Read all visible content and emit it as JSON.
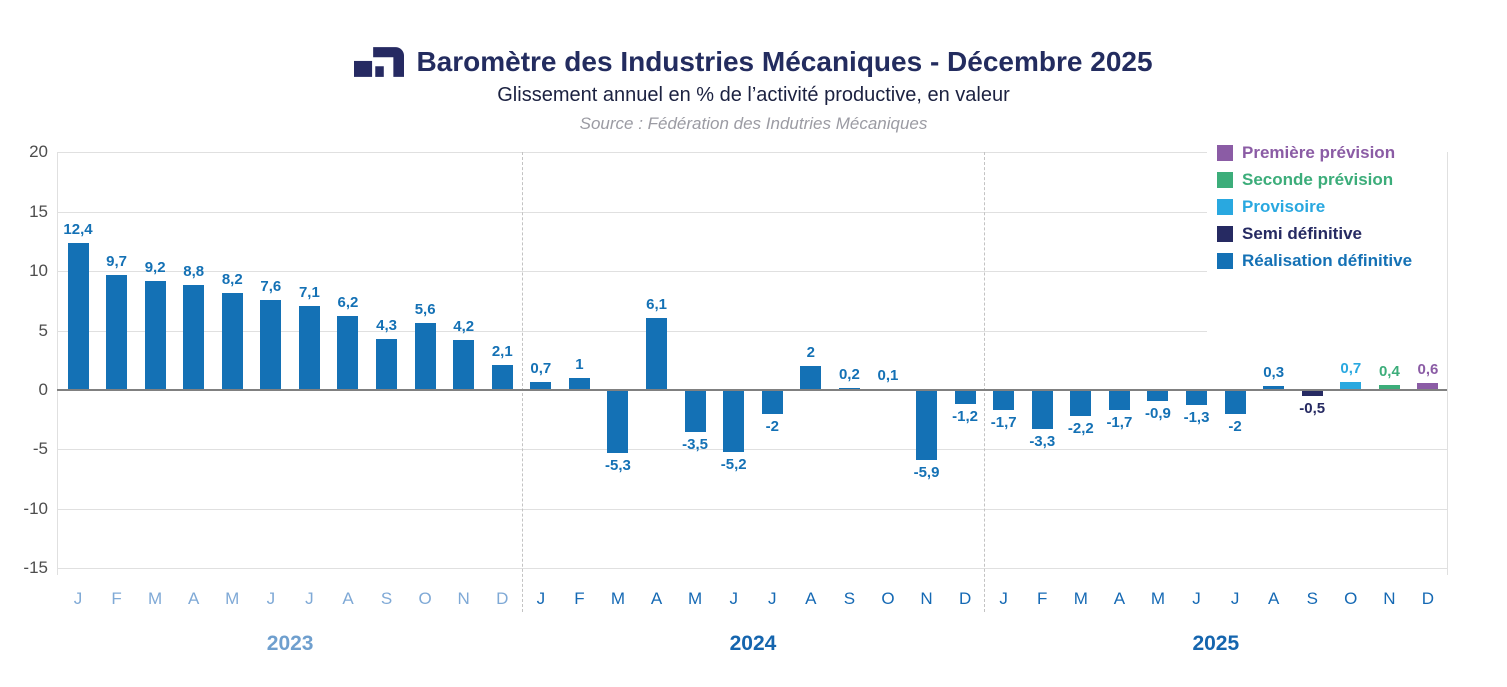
{
  "header": {
    "title": "Baromètre des Industries Mécaniques - Décembre 2025",
    "subtitle": "Glissement annuel en % de l’activité productive, en valeur",
    "source": "Source : Fédération des Indutries Mécaniques"
  },
  "colors": {
    "premiere": "#8b5ca5",
    "seconde": "#3cad7a",
    "provisoire": "#29a8e0",
    "semi": "#262a62",
    "realisation": "#1471b5",
    "title": "#232c5f",
    "subtitle": "#1b2140",
    "source": "#9b9ba3",
    "grid": "#e0e0e0",
    "zero_line": "#808080",
    "axis_label": "#4d4d4d",
    "separator": "#c3c3c3",
    "month_2023": "#7fa9d6",
    "year_2023": "#6f9fce",
    "month_dark": "#1569b4",
    "year_dark": "#1565ae"
  },
  "legend": [
    {
      "key": "premiere",
      "label": "Première prévision"
    },
    {
      "key": "seconde",
      "label": "Seconde prévision"
    },
    {
      "key": "provisoire",
      "label": "Provisoire"
    },
    {
      "key": "semi",
      "label": "Semi définitive"
    },
    {
      "key": "realisation",
      "label": "Réalisation définitive"
    }
  ],
  "chart_data": {
    "type": "bar",
    "title": "Baromètre des Industries Mécaniques - Décembre 2025",
    "subtitle": "Glissement annuel en % de l’activité productive, en valeur",
    "source": "Source : Fédération des Indutries Mécaniques",
    "ylabel": "",
    "xlabel": "",
    "y_ticks": [
      20,
      15,
      10,
      5,
      0,
      -5,
      -10,
      -15
    ],
    "ylim": [
      -17,
      20
    ],
    "grid": true,
    "legend_position": "top-right",
    "year_groups": [
      {
        "year": "2023",
        "muted": true,
        "months": [
          "J",
          "F",
          "M",
          "A",
          "M",
          "J",
          "J",
          "A",
          "S",
          "O",
          "N",
          "D"
        ],
        "values": [
          12.4,
          9.7,
          9.2,
          8.8,
          8.2,
          7.6,
          7.1,
          6.2,
          4.3,
          5.6,
          4.2,
          2.1
        ],
        "labels": [
          "12,4",
          "9,7",
          "9,2",
          "8,8",
          "8,2",
          "7,6",
          "7,1",
          "6,2",
          "4,3",
          "5,6",
          "4,2",
          "2,1"
        ],
        "series": [
          "realisation",
          "realisation",
          "realisation",
          "realisation",
          "realisation",
          "realisation",
          "realisation",
          "realisation",
          "realisation",
          "realisation",
          "realisation",
          "realisation"
        ]
      },
      {
        "year": "2024",
        "muted": false,
        "months": [
          "J",
          "F",
          "M",
          "A",
          "M",
          "J",
          "J",
          "A",
          "S",
          "O",
          "N",
          "D"
        ],
        "values": [
          0.7,
          1,
          -5.3,
          6.1,
          -3.5,
          -5.2,
          -2,
          2,
          0.2,
          0.1,
          -5.9,
          -1.2
        ],
        "labels": [
          "0,7",
          "1",
          "-5,3",
          "6,1",
          "-3,5",
          "-5,2",
          "-2",
          "2",
          "0,2",
          "0,1",
          "-5,9",
          "-1,2"
        ],
        "series": [
          "realisation",
          "realisation",
          "realisation",
          "realisation",
          "realisation",
          "realisation",
          "realisation",
          "realisation",
          "realisation",
          "realisation",
          "realisation",
          "realisation"
        ]
      },
      {
        "year": "2025",
        "muted": false,
        "months": [
          "J",
          "F",
          "M",
          "A",
          "M",
          "J",
          "J",
          "A",
          "S",
          "O",
          "N",
          "D"
        ],
        "values": [
          -1.7,
          -3.3,
          -2.2,
          -1.7,
          -0.9,
          -1.3,
          -2,
          0.3,
          -0.5,
          0.7,
          0.4,
          0.6
        ],
        "labels": [
          "-1,7",
          "-3,3",
          "-2,2",
          "-1,7",
          "-0,9",
          "-1,3",
          "-2",
          "0,3",
          "-0,5",
          "0,7",
          "0,4",
          "0,6"
        ],
        "series": [
          "realisation",
          "realisation",
          "realisation",
          "realisation",
          "realisation",
          "realisation",
          "realisation",
          "realisation",
          "semi",
          "provisoire",
          "seconde",
          "premiere"
        ]
      }
    ]
  }
}
